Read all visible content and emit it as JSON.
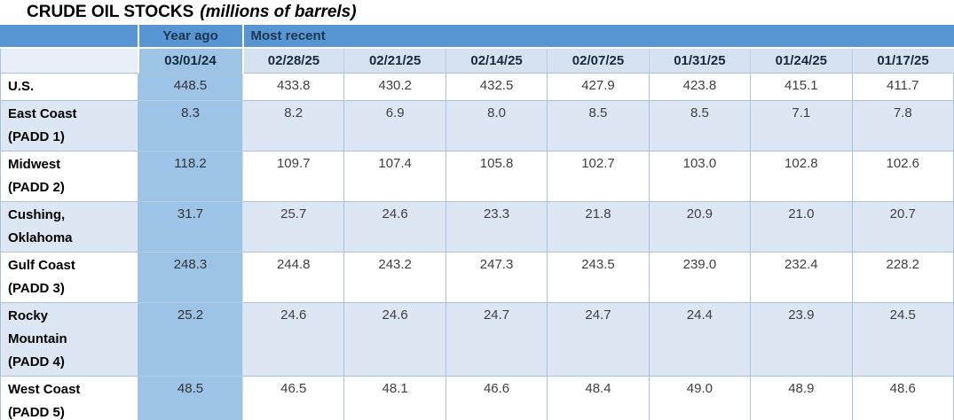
{
  "chart_data": {
    "type": "table",
    "title": "CRUDE OIL STOCKS",
    "subtitle": "(millions of barrels)",
    "column_groups": [
      {
        "label": "Year ago",
        "span": 1
      },
      {
        "label": "Most recent",
        "span": 7
      }
    ],
    "columns": [
      "03/01/24",
      "02/28/25",
      "02/21/25",
      "02/14/25",
      "02/07/25",
      "01/31/25",
      "01/24/25",
      "01/17/25"
    ],
    "rows": [
      {
        "label": "U.S.",
        "values": [
          "448.5",
          "433.8",
          "430.2",
          "432.5",
          "427.9",
          "423.8",
          "415.1",
          "411.7"
        ]
      },
      {
        "label": "East Coast\n(PADD 1)",
        "values": [
          "8.3",
          "8.2",
          "6.9",
          "8.0",
          "8.5",
          "8.5",
          "7.1",
          "7.8"
        ]
      },
      {
        "label": "Midwest\n(PADD 2)",
        "values": [
          "118.2",
          "109.7",
          "107.4",
          "105.8",
          "102.7",
          "103.0",
          "102.8",
          "102.6"
        ]
      },
      {
        "label": "Cushing,\nOklahoma",
        "values": [
          "31.7",
          "25.7",
          "24.6",
          "23.3",
          "21.8",
          "20.9",
          "21.0",
          "20.7"
        ]
      },
      {
        "label": "Gulf Coast\n(PADD 3)",
        "values": [
          "248.3",
          "244.8",
          "243.2",
          "247.3",
          "243.5",
          "239.0",
          "232.4",
          "228.2"
        ]
      },
      {
        "label": "Rocky\nMountain\n(PADD 4)",
        "values": [
          "25.2",
          "24.6",
          "24.6",
          "24.7",
          "24.7",
          "24.4",
          "23.9",
          "24.5"
        ]
      },
      {
        "label": "West Coast\n(PADD 5)",
        "values": [
          "48.5",
          "46.5",
          "48.1",
          "46.6",
          "48.4",
          "49.0",
          "48.9",
          "48.6"
        ]
      }
    ],
    "layout_hints": {
      "striped_rows": true,
      "year_ago_column_highlighted": true,
      "grid": true
    }
  },
  "colors": {
    "header_blue": "#5796d2",
    "year_ago_blue": "#9dc3e6",
    "stripe_blue": "#dce7f3",
    "header_light": "#d6e2f0",
    "grid_blue": "#a9c3dc",
    "header_text": "#1e3550",
    "value_text": "#3f3f3f"
  }
}
